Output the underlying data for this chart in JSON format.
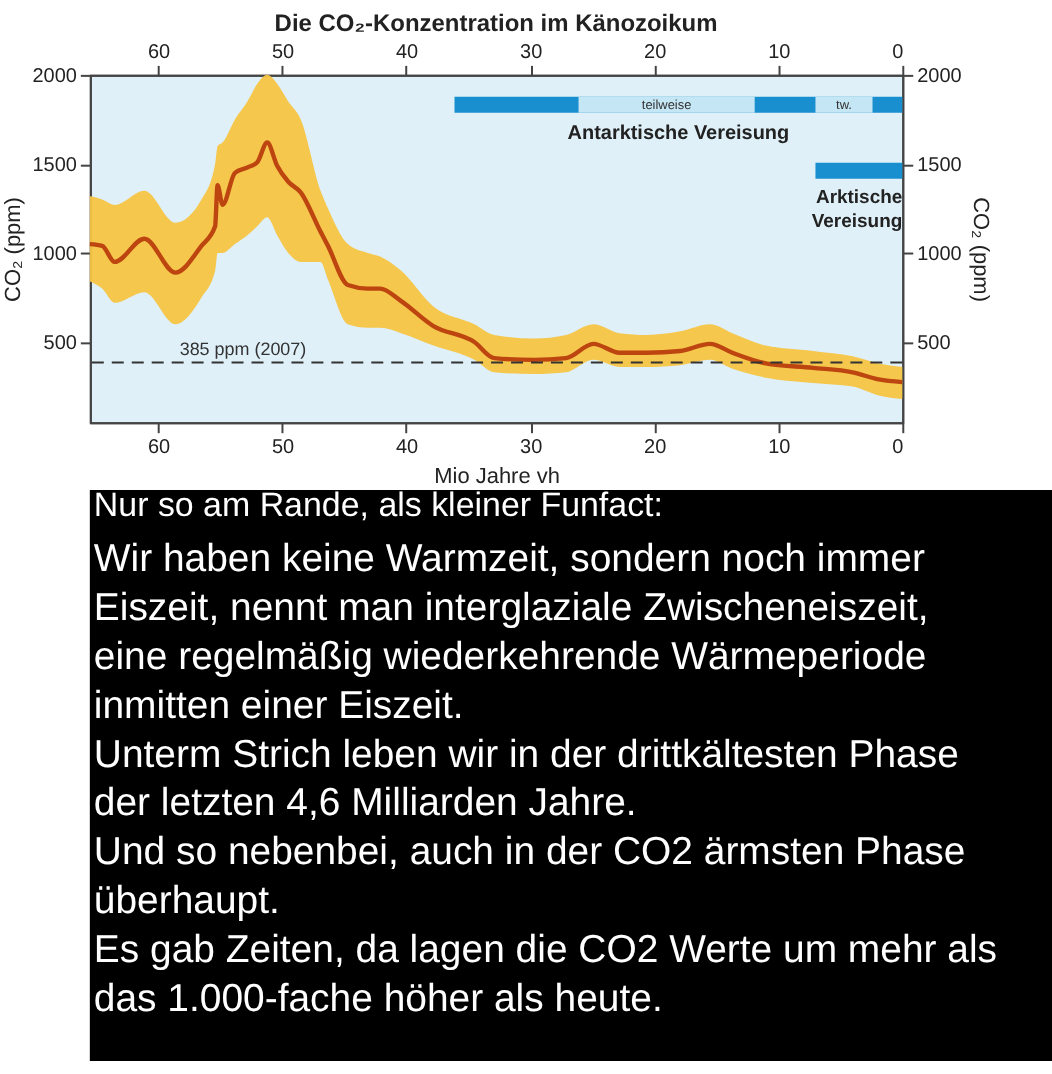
{
  "chart_data": {
    "type": "line",
    "title": "Die CO₂-Konzentration im Känozoikum",
    "xlabel": "Mio Jahre vh",
    "ylabel": "CO₂ (ppm)",
    "y2label": "CO₂ (ppm)",
    "xlim": [
      65.5,
      0
    ],
    "xticks": [
      60,
      50,
      40,
      30,
      20,
      10,
      0
    ],
    "x2lim": [
      65.5,
      0
    ],
    "x2ticks": [
      60,
      50,
      40,
      30,
      20,
      10,
      0
    ],
    "ylim": [
      50,
      2000
    ],
    "yticks": [
      500,
      1000,
      1500,
      2000
    ],
    "y2lim": [
      50,
      2000
    ],
    "y2ticks": [
      500,
      1000,
      1500,
      2000
    ],
    "grid": false,
    "marker": "none",
    "line_style": "solid",
    "series": [
      {
        "color": "#bd4510",
        "x": [
          65.5,
          64.5,
          63.5,
          61.1,
          58.6,
          56.5,
          55.4,
          55.2,
          54.8,
          53.8,
          52.8,
          52.0,
          51.2,
          50.4,
          49.5,
          48.5,
          46.9,
          46.3,
          44.7,
          43.1,
          42.1,
          40.4,
          37.8,
          34.5,
          32.9,
          29.7,
          27.1,
          24.9,
          22.8,
          20.6,
          17.9,
          15.5,
          13.7,
          11.0,
          7.2,
          4.0,
          1.9,
          0
        ],
        "values": [
          1050,
          1040,
          950,
          1080,
          890,
          1040,
          1150,
          1380,
          1270,
          1450,
          1480,
          1510,
          1620,
          1490,
          1400,
          1340,
          1120,
          1040,
          820,
          800,
          800,
          730,
          590,
          500,
          410,
          400,
          410,
          490,
          440,
          440,
          450,
          490,
          440,
          380,
          355,
          330,
          290,
          275
        ],
        "lower": [
          840,
          800,
          720,
          780,
          600,
          750,
          900,
          1000,
          1000,
          1050,
          1100,
          1150,
          1200,
          1100,
          1000,
          950,
          950,
          850,
          600,
          580,
          580,
          550,
          480,
          400,
          330,
          320,
          330,
          400,
          360,
          360,
          370,
          400,
          350,
          300,
          270,
          250,
          200,
          180
        ],
        "upper": [
          1320,
          1300,
          1270,
          1350,
          1170,
          1300,
          1500,
          1600,
          1620,
          1750,
          1850,
          1950,
          2000,
          1950,
          1850,
          1750,
          1350,
          1250,
          1050,
          1000,
          980,
          900,
          700,
          600,
          540,
          520,
          540,
          600,
          550,
          540,
          560,
          600,
          550,
          480,
          450,
          420,
          380,
          360
        ]
      }
    ],
    "ref_lines": [
      {
        "axis": "y",
        "value": 385,
        "label": "385 ppm (2007)",
        "color": "#333333",
        "line_style": "dashed"
      }
    ],
    "bands": [
      {
        "axis": "x",
        "from": 36.1,
        "to": 0,
        "label": "Antarktische Vereisung",
        "color": "#1a8fd0"
      },
      {
        "axis": "x",
        "from": 26.1,
        "to": 11.9,
        "label": "teilweise",
        "color": "#c5e6f4"
      },
      {
        "axis": "x",
        "from": 7.0,
        "to": 0,
        "label": "Arktische Vereisung",
        "color": "#1a8fd0"
      },
      {
        "axis": "x",
        "from": 7.0,
        "to": 2.4,
        "label": "tw.",
        "color": "#c5e6f4"
      }
    ],
    "annotations": [
      "Nur so am Rande, als kleiner Funfact:",
      "Wir haben keine Warmzeit, sondern noch immer",
      "Eiszeit, nennt man interglaziale Zwischeneiszeit,",
      "eine regelmäßig wiederkehrende Wärmeperiode",
      "inmitten einer Eiszeit.",
      "Unterm Strich leben wir in der drittkältesten Phase",
      "der letzten 4,6 Milliarden Jahre.",
      "Und so nebenbei, auch in der CO2 ärmsten Phase",
      "überhaupt.",
      "Es gab Zeiten, da lagen die CO2 Werte um mehr als",
      "das 1.000-fache höher als heute."
    ]
  }
}
